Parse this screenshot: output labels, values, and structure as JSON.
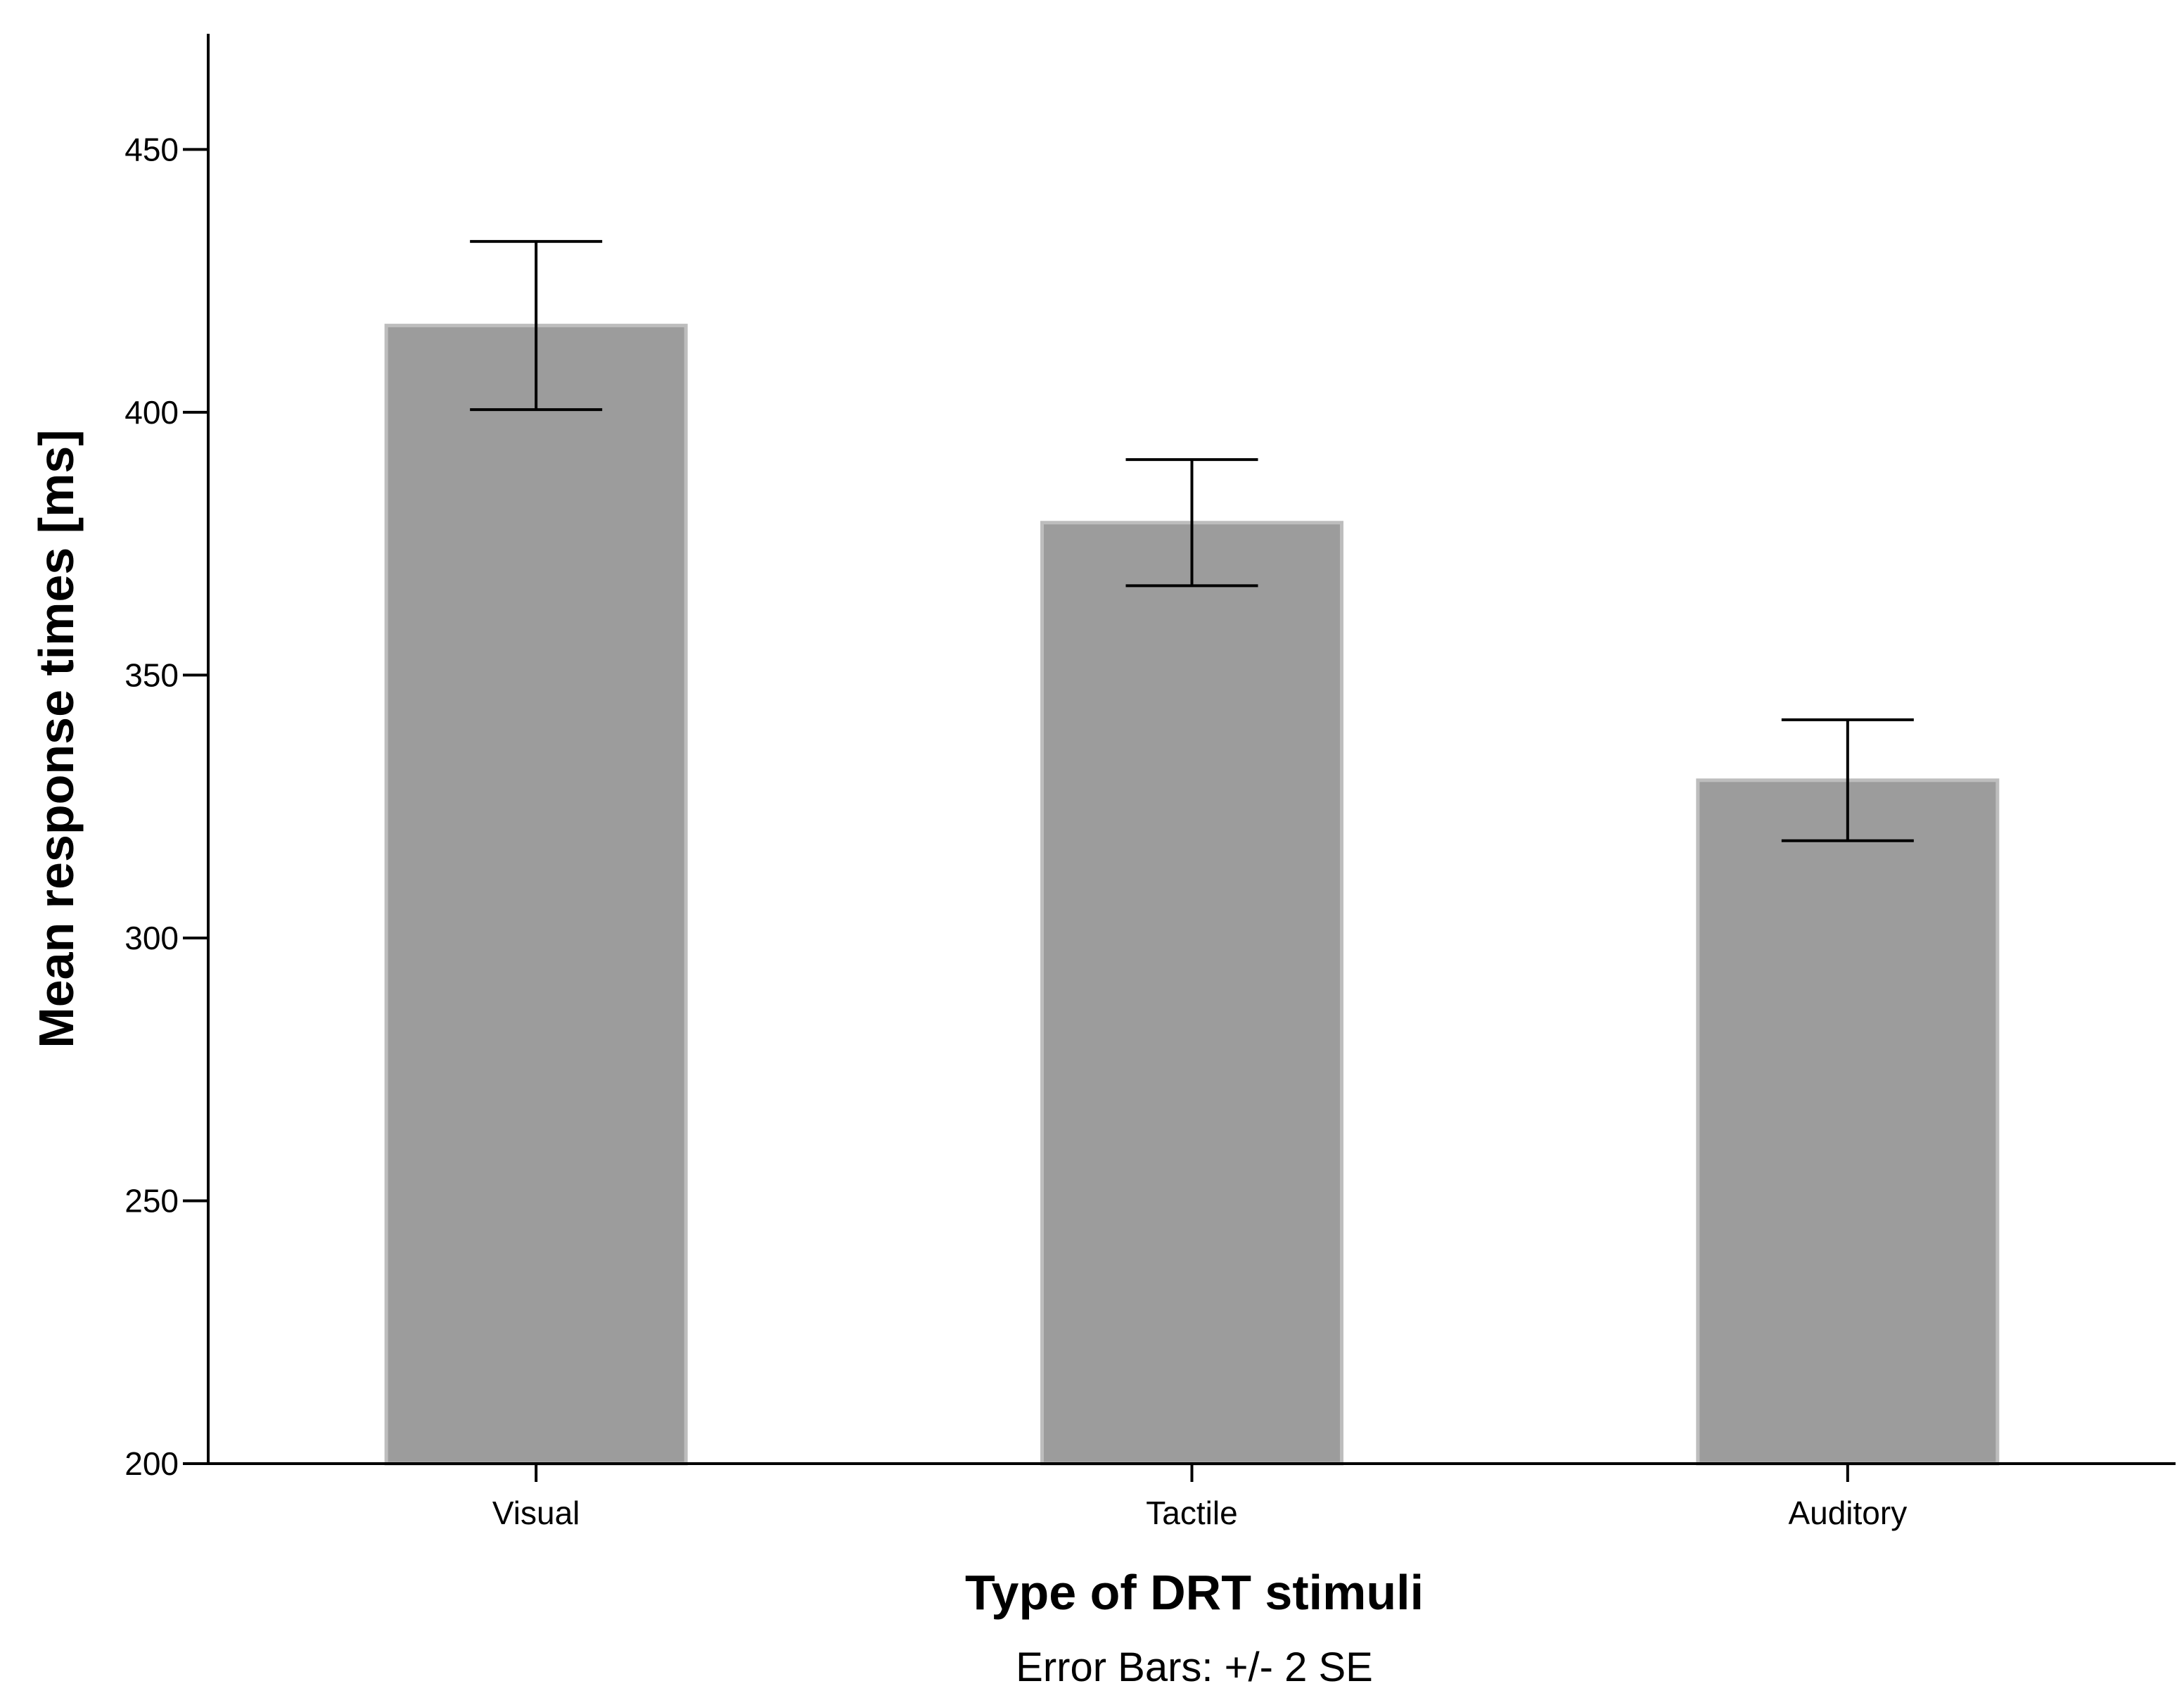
{
  "chart_data": {
    "type": "bar",
    "categories": [
      "Visual",
      "Tactile",
      "Auditory"
    ],
    "values": [
      416.5,
      379.0,
      330.0
    ],
    "error_bars": [
      {
        "lower": 400.5,
        "upper": 432.5
      },
      {
        "lower": 367.0,
        "upper": 391.0
      },
      {
        "lower": 318.5,
        "upper": 341.5
      }
    ],
    "title": "",
    "xlabel": "Type of DRT stimuli",
    "ylabel": "Mean response times [ms]",
    "note": "Error Bars: +/- 2 SE",
    "ylim": [
      200,
      472
    ],
    "yticks": [
      "200",
      "250",
      "300",
      "350",
      "400",
      "450"
    ],
    "grid": false,
    "legend": "none",
    "bar_color": "#9c9c9c"
  }
}
